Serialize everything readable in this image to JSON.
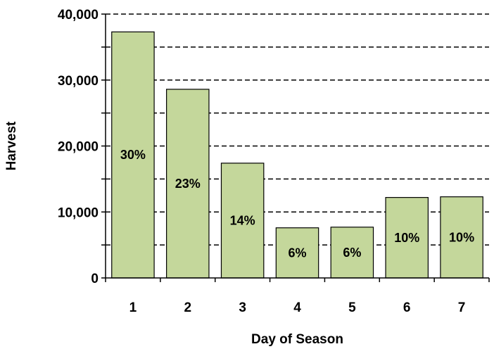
{
  "chart_data": {
    "type": "bar",
    "categories": [
      "1",
      "2",
      "3",
      "4",
      "5",
      "6",
      "7"
    ],
    "values": [
      37300,
      28600,
      17400,
      7600,
      7700,
      12200,
      12300
    ],
    "data_labels": [
      "30%",
      "23%",
      "14%",
      "6%",
      "6%",
      "10%",
      "10%"
    ],
    "title": "",
    "xlabel": "Day of Season",
    "ylabel": "Harvest",
    "ylim": [
      0,
      40000
    ],
    "yticks": [
      0,
      10000,
      20000,
      30000,
      40000
    ],
    "ytick_labels": [
      "0",
      "10,000",
      "20,000",
      "30,000",
      "40,000"
    ],
    "minor_gridlines": [
      5000,
      15000,
      25000,
      35000
    ],
    "grid": true,
    "grid_style": "dashed",
    "legend": "none",
    "colors": {
      "bar_fill": "#c4d79b",
      "bar_stroke": "#000000",
      "grid": "#000000"
    }
  }
}
